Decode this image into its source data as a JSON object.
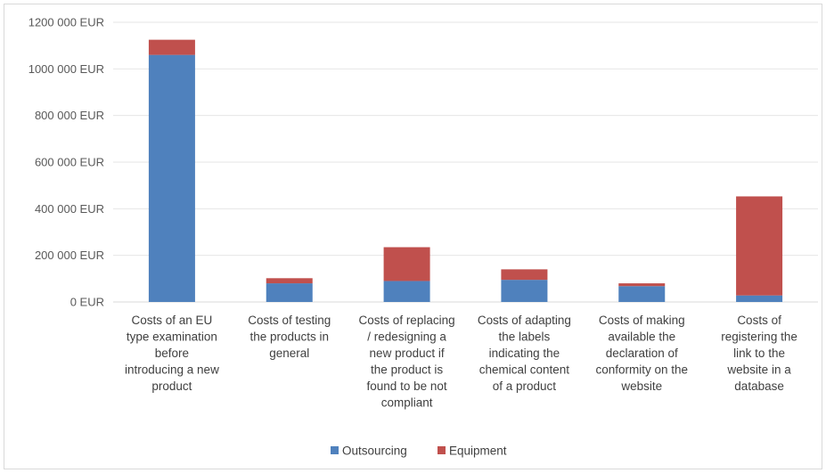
{
  "chart_data": {
    "type": "bar",
    "stacked": true,
    "categories": [
      [
        "Costs of an EU",
        "type examination",
        "before",
        "introducing a new",
        "product"
      ],
      [
        "Costs of testing",
        "the products in",
        "general"
      ],
      [
        "Costs of replacing",
        "/ redesigning a",
        "new product if",
        "the product is",
        "found to be not",
        "compliant"
      ],
      [
        "Costs of adapting",
        "the labels",
        "indicating the",
        "chemical content",
        "of a product"
      ],
      [
        "Costs of making",
        "available the",
        "declaration of",
        "conformity on the",
        "website"
      ],
      [
        "Costs of",
        "registering the",
        "link to the",
        "website in a",
        "database"
      ]
    ],
    "series": [
      {
        "name": "Outsourcing",
        "color": "#4f81bd",
        "values": [
          1060000,
          80000,
          90000,
          95000,
          68000,
          28000
        ]
      },
      {
        "name": "Equipment",
        "color": "#c0504d",
        "values": [
          65000,
          22000,
          145000,
          45000,
          12000,
          425000
        ]
      }
    ],
    "y_ticks": [
      "0 EUR",
      "200 000 EUR",
      "400 000 EUR",
      "600 000 EUR",
      "800 000 EUR",
      "1000 000 EUR",
      "1200 000 EUR"
    ],
    "ylim": [
      0,
      1200000
    ],
    "y_step": 200000,
    "grid": true,
    "legend": "bottom-center"
  }
}
